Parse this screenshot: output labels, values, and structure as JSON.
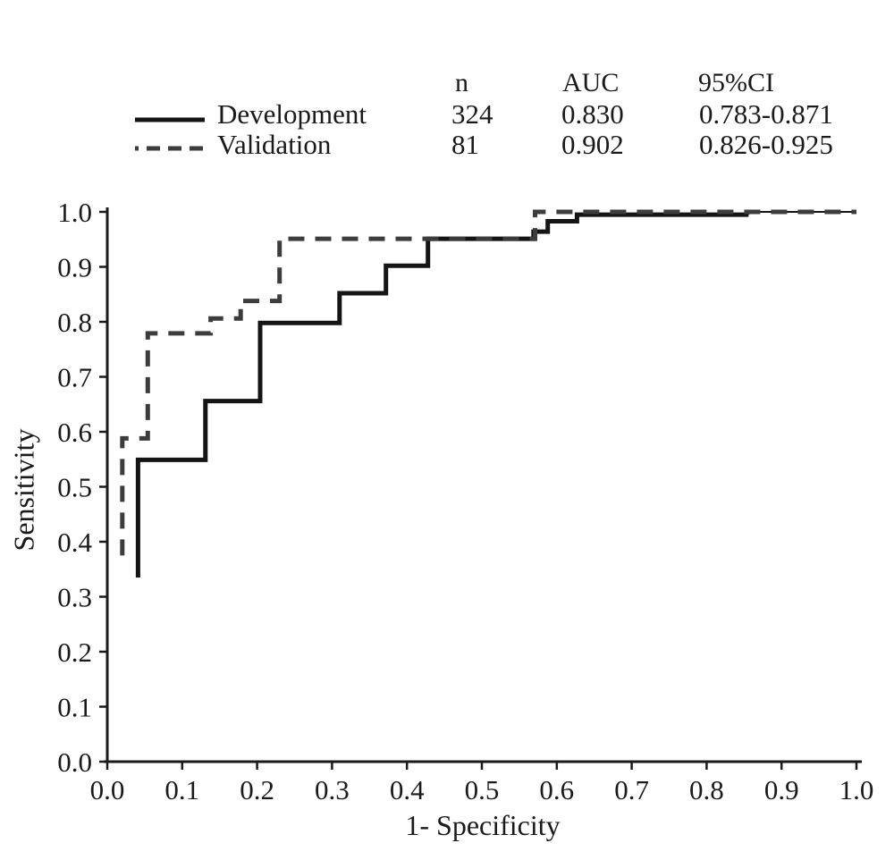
{
  "figure": {
    "background": "#ffffff",
    "text_color": "#1a1a1a"
  },
  "legend": {
    "headers": {
      "n": "n",
      "auc": "AUC",
      "ci": "95%CI"
    },
    "rows": [
      {
        "label": "Development",
        "line_style": "solid",
        "n": "324",
        "auc": "0.830",
        "ci": "0.783-0.871"
      },
      {
        "label": "Validation",
        "line_style": "dashed",
        "n": "81",
        "auc": "0.902",
        "ci": "0.826-0.925"
      }
    ]
  },
  "axes": {
    "x_label": "1- Specificity",
    "y_label": "Sensitivity"
  },
  "chart_data": {
    "type": "line",
    "subtype": "roc-step-curves",
    "title": "",
    "xlabel": "1- Specificity",
    "ylabel": "Sensitivity",
    "xlim": [
      0,
      1
    ],
    "ylim": [
      0,
      1
    ],
    "grid": false,
    "legend_position": "top",
    "x_ticks": [
      "0.0",
      "0.1",
      "0.2",
      "0.3",
      "0.4",
      "0.5",
      "0.6",
      "0.7",
      "0.8",
      "0.9",
      "1.0"
    ],
    "y_ticks": [
      "0.0",
      "0.1",
      "0.2",
      "0.3",
      "0.4",
      "0.5",
      "0.6",
      "0.7",
      "0.8",
      "0.9",
      "1.0"
    ],
    "series": [
      {
        "name": "development",
        "label": "Development",
        "n": "324",
        "auc": "0.830",
        "ci_95": "0.783-0.871",
        "style": "solid",
        "color": "#141414",
        "dash": "",
        "segments": [
          {
            "width": 5,
            "points": [
              [
                0.041,
                0.335
              ],
              [
                0.041,
                0.549
              ],
              [
                0.131,
                0.549
              ],
              [
                0.131,
                0.656
              ],
              [
                0.204,
                0.656
              ],
              [
                0.204,
                0.798
              ],
              [
                0.31,
                0.798
              ],
              [
                0.31,
                0.852
              ],
              [
                0.372,
                0.852
              ],
              [
                0.372,
                0.902
              ],
              [
                0.428,
                0.902
              ],
              [
                0.428,
                0.951
              ],
              [
                0.569,
                0.951
              ],
              [
                0.569,
                0.964
              ],
              [
                0.588,
                0.964
              ],
              [
                0.588,
                0.983
              ],
              [
                0.627,
                0.983
              ],
              [
                0.627,
                0.995
              ],
              [
                0.856,
                0.995
              ]
            ]
          },
          {
            "width": 2,
            "points": [
              [
                0.856,
                0.995
              ],
              [
                0.856,
                1.0
              ],
              [
                1.0,
                1.0
              ]
            ]
          }
        ]
      },
      {
        "name": "validation",
        "label": "Validation",
        "n": "81",
        "auc": "0.902",
        "ci_95": "0.826-0.925",
        "style": "dashed",
        "color": "#3c3c3c",
        "dash": "18 12",
        "segments": [
          {
            "width": 5,
            "points": [
              [
                0.02,
                0.375
              ],
              [
                0.02,
                0.588
              ],
              [
                0.054,
                0.588
              ],
              [
                0.054,
                0.779
              ],
              [
                0.138,
                0.779
              ],
              [
                0.138,
                0.806
              ],
              [
                0.178,
                0.806
              ],
              [
                0.178,
                0.838
              ],
              [
                0.23,
                0.838
              ],
              [
                0.23,
                0.951
              ],
              [
                0.571,
                0.951
              ],
              [
                0.571,
                1.0
              ],
              [
                1.0,
                1.0
              ]
            ]
          }
        ]
      }
    ]
  }
}
